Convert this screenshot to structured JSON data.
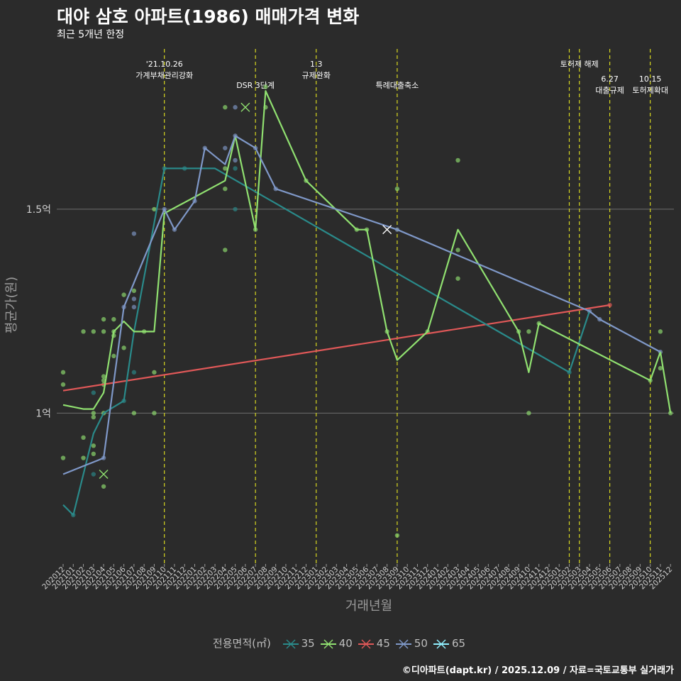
{
  "title": "대야 삼호 아파트(1986) 매매가격 변화",
  "subtitle": "최근 5개년 한정",
  "caption": "©디아파트(dapt.kr) / 2025.12.09 / 자료=국토교통부 실거래가",
  "chart_data": {
    "type": "line",
    "xlabel": "거래년월",
    "ylabel": "평균가(원)",
    "y_ticks": [
      {
        "label": "1.5억",
        "value": 1.5
      },
      {
        "label": "1억",
        "value": 1.0
      }
    ],
    "ylim": [
      0.63,
      1.9
    ],
    "x": [
      "202012",
      "202101",
      "202102",
      "202103",
      "202104",
      "202105",
      "202106",
      "202107",
      "202108",
      "202109",
      "202110",
      "202111",
      "202112",
      "202201",
      "202202",
      "202203",
      "202204",
      "202205",
      "202206",
      "202207",
      "202208",
      "202209",
      "202210",
      "202211",
      "202212",
      "202301",
      "202302",
      "202303",
      "202304",
      "202305",
      "202306",
      "202307",
      "202308",
      "202309",
      "202310",
      "202311",
      "202312",
      "202401",
      "202402",
      "202403",
      "202404",
      "202405",
      "202406",
      "202407",
      "202408",
      "202409",
      "202410",
      "202411",
      "202412",
      "202501",
      "202502",
      "202503",
      "202504",
      "202505",
      "202506",
      "202507",
      "202508",
      "202509",
      "202510",
      "202511",
      "202512"
    ],
    "colors": {
      "35": "#2a8a8a",
      "40": "#90e070",
      "45": "#e05858",
      "50": "#7f98c8",
      "65": "#90f0ff"
    },
    "legend_title": "전용면적(㎡)",
    "legend": [
      "35",
      "40",
      "45",
      "50",
      "65"
    ],
    "events": [
      {
        "x": "202110",
        "lines": [
          "'21.10.26",
          "가계부채관리강화"
        ],
        "level": 1
      },
      {
        "x": "202207",
        "lines": [
          "DSR 3단계"
        ],
        "level": 2
      },
      {
        "x": "202301",
        "lines": [
          "1.3",
          "규제완화"
        ],
        "level": 1
      },
      {
        "x": "202309",
        "lines": [
          "특례대출축소"
        ],
        "level": 2
      },
      {
        "x": "202502",
        "lines": [],
        "level": 0
      },
      {
        "x": "202503",
        "lines": [
          "토허제 해제"
        ],
        "level": 1
      },
      {
        "x": "202506",
        "lines": [
          "6.27",
          "대출규제"
        ],
        "level": 3
      },
      {
        "x": "202510",
        "lines": [
          "10.15",
          "토허제확대"
        ],
        "level": 3
      }
    ],
    "series": [
      {
        "name": "35",
        "points": [
          [
            "202012",
            0.775
          ],
          [
            "202101",
            0.75
          ],
          [
            "202103",
            0.95
          ],
          [
            "202104",
            1.0
          ],
          [
            "202106",
            1.03
          ],
          [
            "202107",
            1.2
          ],
          [
            "202110",
            1.6
          ],
          [
            "202203",
            1.6
          ],
          [
            "202502",
            1.1
          ],
          [
            "202504",
            1.25
          ]
        ]
      },
      {
        "name": "40",
        "points": [
          [
            "202012",
            1.02
          ],
          [
            "202102",
            1.01
          ],
          [
            "202103",
            1.01
          ],
          [
            "202104",
            1.05
          ],
          [
            "202105",
            1.2
          ],
          [
            "202106",
            1.225
          ],
          [
            "202107",
            1.2
          ],
          [
            "202108",
            1.2
          ],
          [
            "202109",
            1.2
          ],
          [
            "202110",
            1.49
          ],
          [
            "202204",
            1.57
          ],
          [
            "202205",
            1.68
          ],
          [
            "202207",
            1.45
          ],
          [
            "202208",
            1.79
          ],
          [
            "202212",
            1.57
          ],
          [
            "202305",
            1.45
          ],
          [
            "202306",
            1.45
          ],
          [
            "202308",
            1.2
          ],
          [
            "202309",
            1.13
          ],
          [
            "202312",
            1.2
          ],
          [
            "202403",
            1.45
          ],
          [
            "202409",
            1.2
          ],
          [
            "202410",
            1.1
          ],
          [
            "202411",
            1.22
          ],
          [
            "202510",
            1.08
          ],
          [
            "202511",
            1.15
          ],
          [
            "202512",
            1.0
          ]
        ]
      },
      {
        "name": "45",
        "points": [
          [
            "202012",
            1.055
          ],
          [
            "202506",
            1.265
          ]
        ]
      },
      {
        "name": "50",
        "points": [
          [
            "202012",
            0.85
          ],
          [
            "202104",
            0.89
          ],
          [
            "202106",
            1.26
          ],
          [
            "202107",
            1.32
          ],
          [
            "202110",
            1.5
          ],
          [
            "202111",
            1.45
          ],
          [
            "202201",
            1.52
          ],
          [
            "202202",
            1.65
          ],
          [
            "202204",
            1.61
          ],
          [
            "202205",
            1.68
          ],
          [
            "202207",
            1.65
          ],
          [
            "202209",
            1.55
          ],
          [
            "202309",
            1.45
          ],
          [
            "202504",
            1.25
          ],
          [
            "202505",
            1.23
          ],
          [
            "202511",
            1.15
          ]
        ]
      },
      {
        "name": "65",
        "points": []
      }
    ],
    "scatter": [
      [
        "202012",
        1.1,
        "40"
      ],
      [
        "202012",
        1.07,
        "40"
      ],
      [
        "202012",
        0.89,
        "40"
      ],
      [
        "202101",
        0.75,
        "35"
      ],
      [
        "202102",
        1.2,
        "40"
      ],
      [
        "202102",
        0.94,
        "40"
      ],
      [
        "202102",
        0.89,
        "40"
      ],
      [
        "202103",
        1.2,
        "40"
      ],
      [
        "202103",
        1.05,
        "35"
      ],
      [
        "202103",
        1.0,
        "40"
      ],
      [
        "202103",
        0.99,
        "40"
      ],
      [
        "202103",
        0.92,
        "40"
      ],
      [
        "202103",
        0.9,
        "40"
      ],
      [
        "202103",
        0.85,
        "35"
      ],
      [
        "202104",
        1.23,
        "40"
      ],
      [
        "202104",
        1.2,
        "40"
      ],
      [
        "202104",
        1.09,
        "40"
      ],
      [
        "202104",
        1.08,
        "40"
      ],
      [
        "202104",
        1.07,
        "40"
      ],
      [
        "202104",
        1.0,
        "40"
      ],
      [
        "202104",
        0.89,
        "50"
      ],
      [
        "202104",
        0.82,
        "40"
      ],
      [
        "202105",
        1.23,
        "40"
      ],
      [
        "202105",
        1.2,
        "40"
      ],
      [
        "202105",
        1.19,
        "40"
      ],
      [
        "202105",
        1.14,
        "40"
      ],
      [
        "202106",
        1.29,
        "40"
      ],
      [
        "202106",
        1.26,
        "50"
      ],
      [
        "202106",
        1.16,
        "40"
      ],
      [
        "202106",
        1.03,
        "35"
      ],
      [
        "202107",
        1.44,
        "50"
      ],
      [
        "202107",
        1.3,
        "40"
      ],
      [
        "202107",
        1.28,
        "50"
      ],
      [
        "202107",
        1.26,
        "50"
      ],
      [
        "202107",
        1.1,
        "35"
      ],
      [
        "202107",
        1.0,
        "40"
      ],
      [
        "202108",
        1.2,
        "40"
      ],
      [
        "202109",
        1.5,
        "40"
      ],
      [
        "202109",
        1.1,
        "40"
      ],
      [
        "202109",
        1.0,
        "40"
      ],
      [
        "202110",
        1.5,
        "50"
      ],
      [
        "202110",
        1.6,
        "35"
      ],
      [
        "202111",
        1.45,
        "50"
      ],
      [
        "202112",
        1.6,
        "35"
      ],
      [
        "202201",
        1.52,
        "50"
      ],
      [
        "202202",
        1.65,
        "50"
      ],
      [
        "202204",
        1.75,
        "40"
      ],
      [
        "202204",
        1.65,
        "50"
      ],
      [
        "202204",
        1.6,
        "40"
      ],
      [
        "202204",
        1.55,
        "40"
      ],
      [
        "202204",
        1.4,
        "40"
      ],
      [
        "202205",
        1.75,
        "50"
      ],
      [
        "202205",
        1.68,
        "50"
      ],
      [
        "202205",
        1.62,
        "50"
      ],
      [
        "202205",
        1.6,
        "35"
      ],
      [
        "202205",
        1.5,
        "35"
      ],
      [
        "202207",
        1.45,
        "40"
      ],
      [
        "202207",
        1.65,
        "50"
      ],
      [
        "202208",
        1.8,
        "40"
      ],
      [
        "202208",
        1.75,
        "40"
      ],
      [
        "202209",
        1.55,
        "50"
      ],
      [
        "202212",
        1.57,
        "40"
      ],
      [
        "202305",
        1.45,
        "40"
      ],
      [
        "202306",
        1.45,
        "40"
      ],
      [
        "202308",
        1.2,
        "40"
      ],
      [
        "202309",
        1.55,
        "40"
      ],
      [
        "202309",
        1.45,
        "50"
      ],
      [
        "202309",
        0.7,
        "40"
      ],
      [
        "202312",
        1.2,
        "40"
      ],
      [
        "202403",
        1.62,
        "40"
      ],
      [
        "202403",
        1.4,
        "40"
      ],
      [
        "202403",
        1.33,
        "40"
      ],
      [
        "202409",
        1.2,
        "40"
      ],
      [
        "202410",
        1.2,
        "40"
      ],
      [
        "202410",
        1.0,
        "40"
      ],
      [
        "202411",
        1.22,
        "40"
      ],
      [
        "202502",
        1.1,
        "35"
      ],
      [
        "202504",
        1.25,
        "50"
      ],
      [
        "202505",
        1.23,
        "50"
      ],
      [
        "202506",
        1.265,
        "45"
      ],
      [
        "202510",
        1.08,
        "40"
      ],
      [
        "202511",
        1.2,
        "40"
      ],
      [
        "202511",
        1.11,
        "40"
      ],
      [
        "202511",
        1.15,
        "50"
      ],
      [
        "202512",
        1.0,
        "40"
      ]
    ],
    "x_markers": [
      [
        "202104",
        0.85,
        "40"
      ],
      [
        "202206",
        1.75,
        "40"
      ],
      [
        "202308",
        1.45,
        "50"
      ]
    ],
    "trend": {
      "name": "45",
      "from": [
        "202012",
        1.055
      ],
      "to": [
        "202506",
        1.265
      ]
    }
  }
}
